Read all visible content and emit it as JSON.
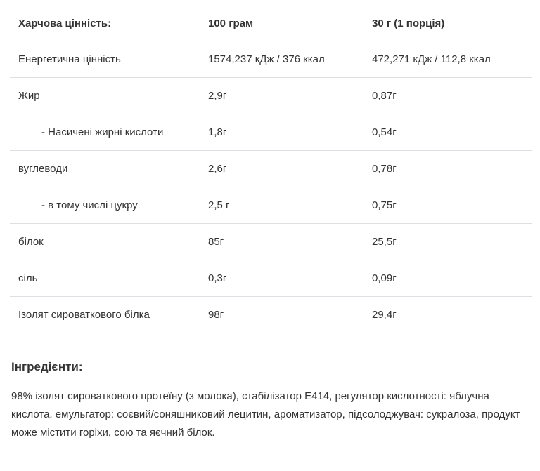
{
  "table": {
    "headers": [
      "Харчова цінність:",
      "100 грам",
      "30 г (1 порція)"
    ],
    "rows": [
      {
        "label": "Енергетична цінність",
        "per100": "1574,237 кДж / 376 ккал",
        "perServing": "472,271 кДж / 112,8 ккал"
      },
      {
        "label": "Жир",
        "per100": "2,9г",
        "perServing": "0,87г"
      },
      {
        "label": "- Насичені жирні кислоти",
        "per100": "1,8г",
        "perServing": "0,54г"
      },
      {
        "label": "вуглеводи",
        "per100": "2,6г",
        "perServing": "0,78г"
      },
      {
        "label": "- в тому числі цукру",
        "per100": "2,5 г",
        "perServing": "0,75г"
      },
      {
        "label": "білок",
        "per100": "85г",
        "perServing": "25,5г"
      },
      {
        "label": "сіль",
        "per100": "0,3г",
        "perServing": "0,09г"
      },
      {
        "label": "Ізолят сироваткового білка",
        "per100": "98г",
        "perServing": "29,4г"
      }
    ]
  },
  "ingredients": {
    "title": "Інгредієнти:",
    "text": "98% ізолят сироваткового протеїну (з молока), стабілізатор E414, регулятор кислотності: яблучна кислота, емульгатор: соєвий/соняшниковий лецитин, ароматизатор, підсолоджувач: сукралоза, продукт може містити горіхи, сою та яєчний білок."
  },
  "colors": {
    "text": "#333333",
    "divider": "#dcdfe3",
    "background": "#ffffff"
  }
}
